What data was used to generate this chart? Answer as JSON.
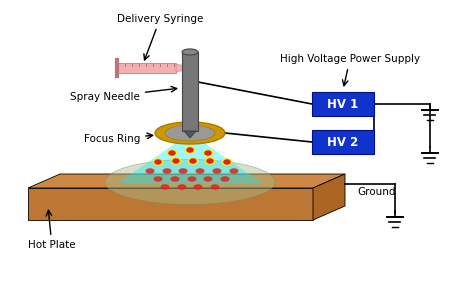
{
  "bg_color": "#ffffff",
  "labels": {
    "delivery_syringe": "Delivery Syringe",
    "spray_needle": "Spray Needle",
    "focus_ring": "Focus Ring",
    "hv_supply": "High Voltage Power Supply",
    "hot_plate": "Hot Plate",
    "ground": "Ground",
    "hv1": "HV 1",
    "hv2": "HV 2"
  },
  "colors": {
    "needle_body": "#777777",
    "needle_top": "#888888",
    "syringe_body": "#f4b0b0",
    "syringe_outline": "#cc8888",
    "focus_ring_fill": "#cc9900",
    "focus_ring_edge": "#aa7700",
    "spray_cone": "#00eeff",
    "hot_plate_top": "#cc8844",
    "hot_plate_side": "#aa6622",
    "hot_plate_front": "#bb7733",
    "deposit_area": "#aabb88",
    "dot_red": "#dd2222",
    "dot_yellow": "#ffee00",
    "hv_box": "#1133cc",
    "hv_text": "#ffffff",
    "wire": "#000000",
    "ground_symbol": "#000000",
    "tube": "#f4b0b0"
  }
}
